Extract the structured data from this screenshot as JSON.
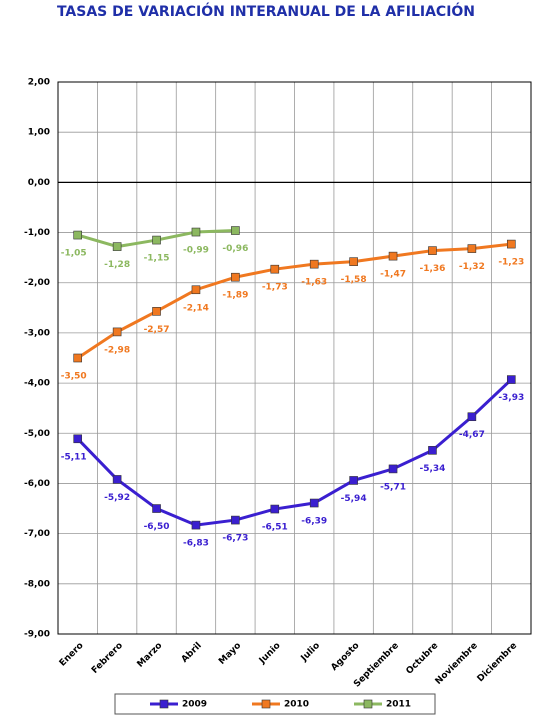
{
  "chart_data": {
    "type": "line",
    "title": "TASAS DE VARIACIÓN INTERANUAL DE LA AFILIACIÓN",
    "categories": [
      "Enero",
      "Febrero",
      "Marzo",
      "Abril",
      "Mayo",
      "Junio",
      "Julio",
      "Agosto",
      "Septiembre",
      "Octubre",
      "Noviembre",
      "Diciembre"
    ],
    "series": [
      {
        "name": "2009",
        "color": "#3a1fd0",
        "values": [
          -5.11,
          -5.92,
          -6.5,
          -6.83,
          -6.73,
          -6.51,
          -6.39,
          -5.94,
          -5.71,
          -5.34,
          -4.67,
          -3.93
        ],
        "value_labels": [
          "-5,11",
          "-5,92",
          "-6,50",
          "-6,83",
          "-6,73",
          "-6,51",
          "-6,39",
          "-5,94",
          "-5,71",
          "-5,34",
          "-4,67",
          "-3,93"
        ]
      },
      {
        "name": "2010",
        "color": "#f07820",
        "values": [
          -3.5,
          -2.98,
          -2.57,
          -2.14,
          -1.89,
          -1.73,
          -1.63,
          -1.58,
          -1.47,
          -1.36,
          -1.32,
          -1.23
        ],
        "value_labels": [
          "-3,50",
          "-2,98",
          "-2,57",
          "-2,14",
          "-1,89",
          "-1,73",
          "-1,63",
          "-1,58",
          "-1,47",
          "-1,36",
          "-1,32",
          "-1,23"
        ]
      },
      {
        "name": "2011",
        "color": "#8cb860",
        "values": [
          -1.05,
          -1.28,
          -1.15,
          -0.99,
          -0.96,
          null,
          null,
          null,
          null,
          null,
          null,
          null
        ],
        "value_labels": [
          "-1,05",
          "-1,28",
          "-1,15",
          "-0,99",
          "-0,96",
          null,
          null,
          null,
          null,
          null,
          null,
          null
        ]
      }
    ],
    "ylim": [
      -9,
      2
    ],
    "yticks": [
      {
        "value": -9,
        "label": "-9,00"
      },
      {
        "value": -8,
        "label": "-8,00"
      },
      {
        "value": -7,
        "label": "-7,00"
      },
      {
        "value": -6,
        "label": "-6,00"
      },
      {
        "value": -5,
        "label": "-5,00"
      },
      {
        "value": -4,
        "label": "-4,00"
      },
      {
        "value": -3,
        "label": "-3,00"
      },
      {
        "value": -2,
        "label": "-2,00"
      },
      {
        "value": -1,
        "label": "-1,00"
      },
      {
        "value": 0,
        "label": "0,00"
      },
      {
        "value": 1,
        "label": "1,00"
      },
      {
        "value": 2,
        "label": "2,00"
      }
    ],
    "grid": true
  }
}
